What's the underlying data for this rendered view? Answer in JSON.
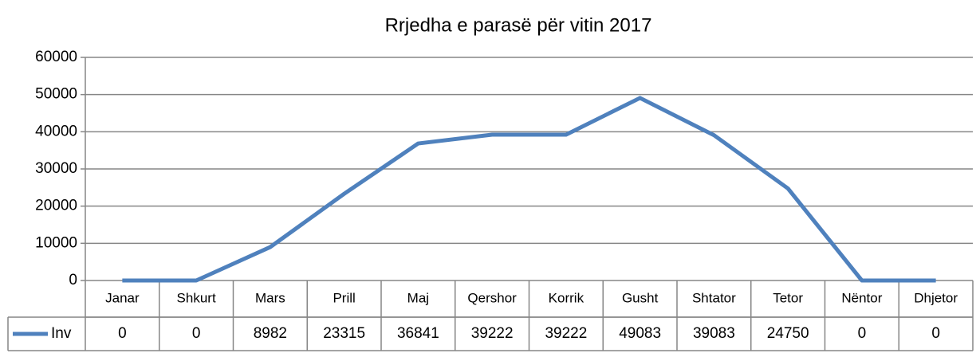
{
  "chart_data": {
    "type": "line",
    "title": "Rrjedha e parasë për vitin 2017",
    "categories": [
      "Janar",
      "Shkurt",
      "Mars",
      "Prill",
      "Maj",
      "Qershor",
      "Korrik",
      "Gusht",
      "Shtator",
      "Tetor",
      "Nëntor",
      "Dhjetor"
    ],
    "series": [
      {
        "name": "Inv",
        "color": "#4f81bd",
        "values": [
          0,
          0,
          8982,
          23315,
          36841,
          39222,
          39222,
          49083,
          39083,
          24750,
          0,
          0
        ]
      }
    ],
    "ylim": [
      0,
      60000
    ],
    "yticks": [
      0,
      10000,
      20000,
      30000,
      40000,
      50000,
      60000
    ],
    "grid": true,
    "data_table": true
  }
}
